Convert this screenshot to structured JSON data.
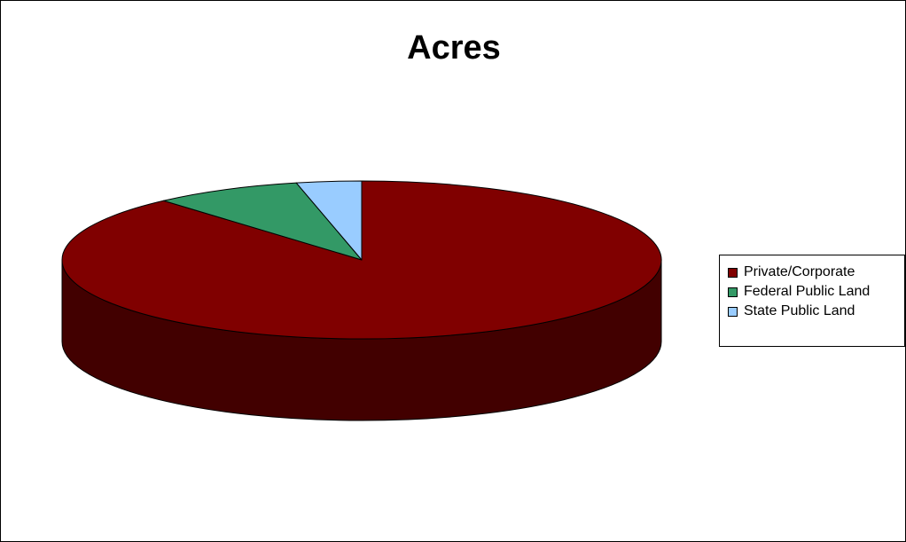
{
  "chart_data": {
    "type": "pie",
    "three_d": true,
    "title": "Acres",
    "legend_position": "right",
    "slices": [
      {
        "name": "Private/Corporate",
        "value": 88.5,
        "color": "#800000",
        "side_color": "#420000"
      },
      {
        "name": "Federal Public Land",
        "value": 8.0,
        "color": "#339966",
        "side_color": "#1a4d33"
      },
      {
        "name": "State Public Land",
        "value": 3.5,
        "color": "#99ccff",
        "side_color": "#4d6680"
      }
    ]
  }
}
